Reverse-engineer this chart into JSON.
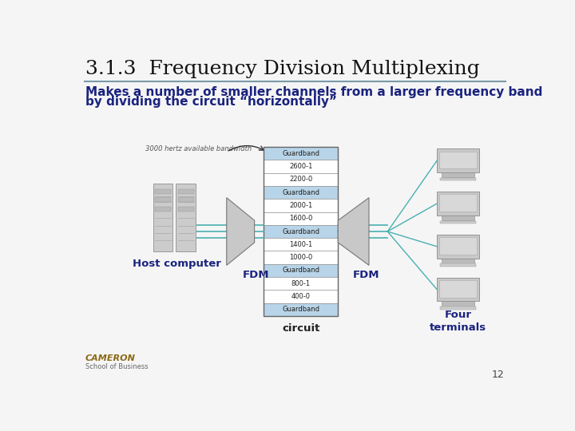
{
  "title": "3.1.3  Frequency Division Multiplexing",
  "subtitle_line1": "Makes a number of smaller channels from a larger frequency band",
  "subtitle_line2": "by dividing the circuit “horizontally”",
  "background_color": "#f5f5f5",
  "title_color": "#111111",
  "subtitle_color": "#1a237e",
  "title_fontsize": 18,
  "subtitle_fontsize": 11,
  "page_number": "12",
  "circuit_rows": [
    {
      "label": "Guardband",
      "is_guard": true
    },
    {
      "label": "2600-1",
      "is_guard": false
    },
    {
      "label": "2200-0",
      "is_guard": false
    },
    {
      "label": "Guardband",
      "is_guard": true
    },
    {
      "label": "2000-1",
      "is_guard": false
    },
    {
      "label": "1600-0",
      "is_guard": false
    },
    {
      "label": "Guardband",
      "is_guard": true
    },
    {
      "label": "1400-1",
      "is_guard": false
    },
    {
      "label": "1000-0",
      "is_guard": false
    },
    {
      "label": "Guardband",
      "is_guard": true
    },
    {
      "label": "800-1",
      "is_guard": false
    },
    {
      "label": "400-0",
      "is_guard": false
    },
    {
      "label": "Guardband",
      "is_guard": true
    }
  ],
  "guard_color": "#b8d4e8",
  "channel_color": "#ffffff",
  "fdm_label_color": "#1a237e",
  "label_host": "Host computer",
  "label_fdm_left": "FDM",
  "label_circuit": "circuit",
  "label_fdm_right": "FDM",
  "label_terminals": "Four\nterminals",
  "bandwidth_label": "3000 hertz available bandwidth",
  "line_color": "#4ab0b0",
  "divider_color": "#7a9aaa"
}
